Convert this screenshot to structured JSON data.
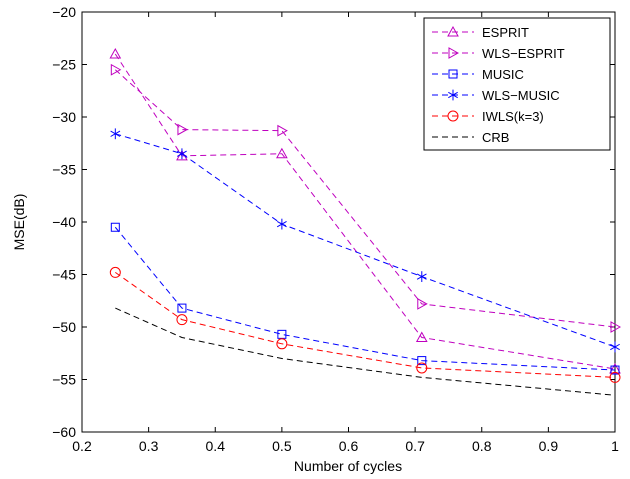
{
  "chart_data": {
    "type": "line",
    "xlabel": "Number of cycles",
    "ylabel": "MSE(dB)",
    "xlim": [
      0.2,
      1
    ],
    "ylim": [
      -60,
      -20
    ],
    "xticks": [
      0.2,
      0.3,
      0.4,
      0.5,
      0.6,
      0.7,
      0.8,
      0.9,
      1
    ],
    "xtick_labels": [
      "0.2",
      "0.3",
      "0.4",
      "0.5",
      "0.6",
      "0.7",
      "0.8",
      "0.9",
      "1"
    ],
    "yticks": [
      -60,
      -55,
      -50,
      -45,
      -40,
      -35,
      -30,
      -25,
      -20
    ],
    "ytick_labels": [
      "−60",
      "−55",
      "−50",
      "−45",
      "−40",
      "−35",
      "−30",
      "−25",
      "−20"
    ],
    "grid": false,
    "legend_position": "top-right",
    "series": [
      {
        "name": "ESPRIT",
        "color": "#bf00bf",
        "marker": "triangle-up",
        "x": [
          0.25,
          0.35,
          0.5,
          0.71,
          1
        ],
        "y": [
          -24.0,
          -33.7,
          -33.5,
          -51.0,
          -54.0
        ]
      },
      {
        "name": "WLS−ESPRIT",
        "color": "#bf00bf",
        "marker": "triangle-right",
        "x": [
          0.25,
          0.35,
          0.5,
          0.71,
          1
        ],
        "y": [
          -25.5,
          -31.2,
          -31.3,
          -47.8,
          -50.0
        ]
      },
      {
        "name": "MUSIC",
        "color": "#0000ff",
        "marker": "square",
        "x": [
          0.25,
          0.35,
          0.5,
          0.71,
          1
        ],
        "y": [
          -40.5,
          -48.2,
          -50.7,
          -53.2,
          -54.1
        ]
      },
      {
        "name": "WLS−MUSIC",
        "color": "#0000ff",
        "marker": "asterisk",
        "x": [
          0.25,
          0.35,
          0.5,
          0.71,
          1
        ],
        "y": [
          -31.6,
          -33.5,
          -40.2,
          -45.2,
          -51.9
        ]
      },
      {
        "name": "IWLS(k=3)",
        "color": "#ff0000",
        "marker": "circle",
        "x": [
          0.25,
          0.35,
          0.5,
          0.71,
          1
        ],
        "y": [
          -44.8,
          -49.3,
          -51.6,
          -53.9,
          -54.8
        ]
      },
      {
        "name": "CRB",
        "color": "#000000",
        "marker": "none",
        "x": [
          0.25,
          0.35,
          0.5,
          0.71,
          1
        ],
        "y": [
          -48.2,
          -51.0,
          -53.0,
          -54.8,
          -56.5
        ]
      }
    ]
  }
}
